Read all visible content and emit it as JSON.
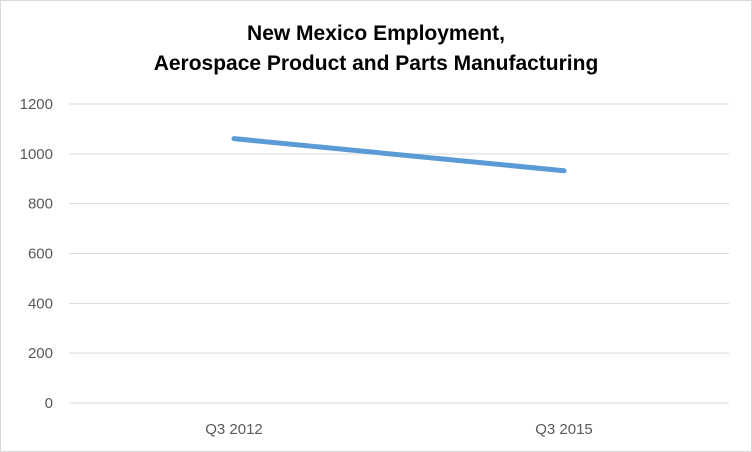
{
  "chart_data": {
    "type": "line",
    "title_lines": [
      "New Mexico Employment,",
      "Aerospace Product and Parts Manufacturing"
    ],
    "categories": [
      "Q3 2012",
      "Q3 2015"
    ],
    "series": [
      {
        "values": [
          1061,
          932
        ],
        "color": "#5b9bd5"
      }
    ],
    "ylim": [
      0,
      1200
    ],
    "yticks": [
      0,
      200,
      400,
      600,
      800,
      1000,
      1200
    ],
    "grid": true,
    "legend": "none"
  }
}
